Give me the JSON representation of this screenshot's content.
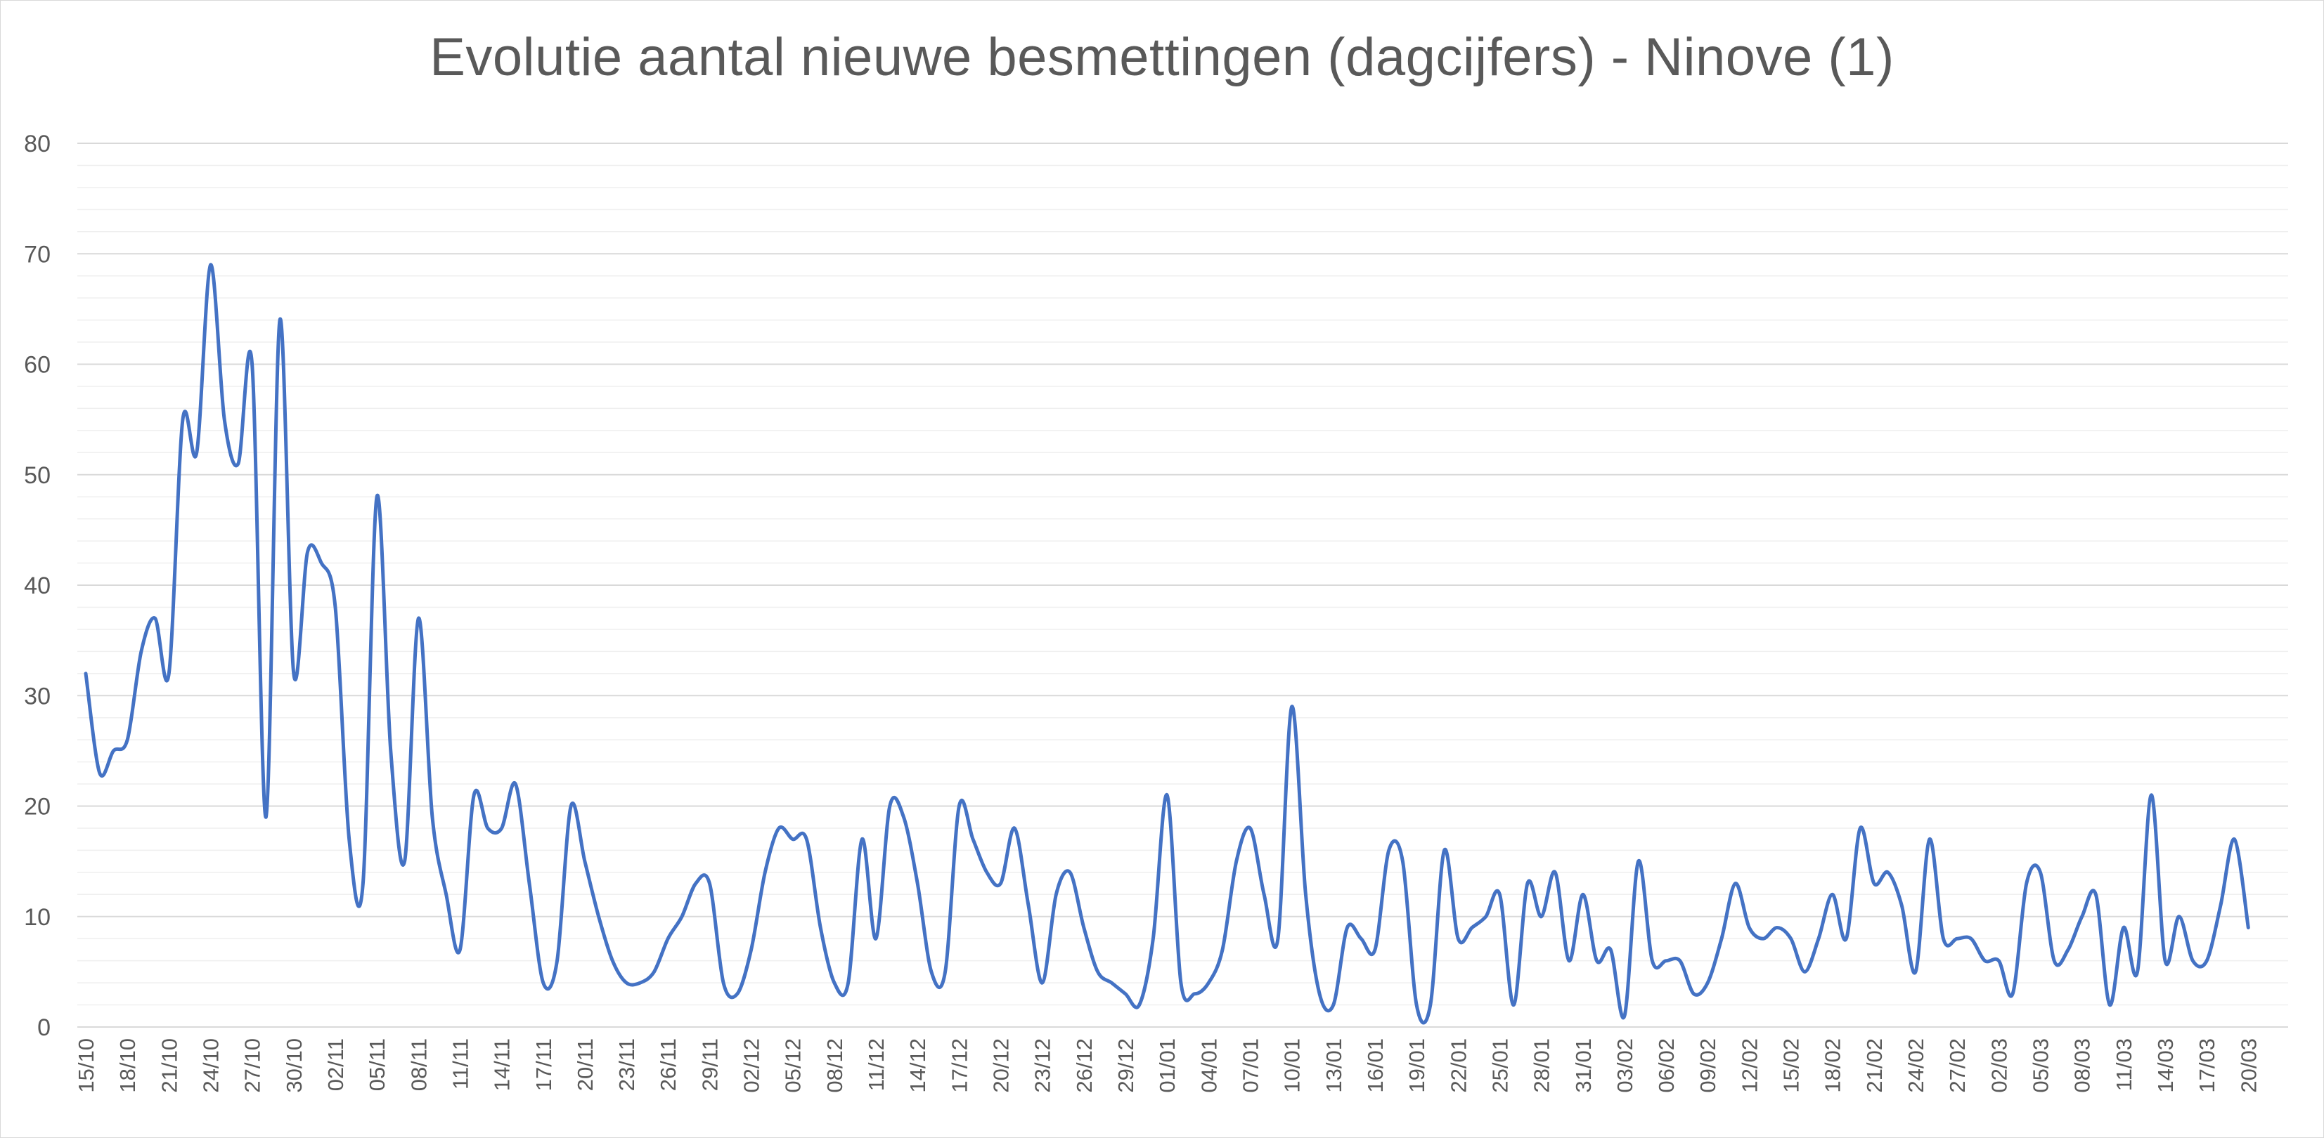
{
  "chart_data": {
    "type": "line",
    "title": "Evolutie aantal nieuwe besmettingen (dagcijfers) - Ninove (1)",
    "xlabel": "",
    "ylabel": "",
    "ylim": [
      0,
      80
    ],
    "y_ticks": [
      0,
      10,
      20,
      30,
      40,
      50,
      60,
      70,
      80
    ],
    "grid": true,
    "minor_grid": true,
    "legend": "none",
    "x_tick_labels": [
      "15/10",
      "18/10",
      "21/10",
      "24/10",
      "27/10",
      "30/10",
      "02/11",
      "05/11",
      "08/11",
      "11/11",
      "14/11",
      "17/11",
      "20/11",
      "23/11",
      "26/11",
      "29/11",
      "02/12",
      "05/12",
      "08/12",
      "11/12",
      "14/12",
      "17/12",
      "20/12",
      "23/12",
      "26/12",
      "29/12",
      "01/01",
      "04/01",
      "07/01",
      "10/01",
      "13/01",
      "16/01",
      "19/01",
      "22/01",
      "25/01",
      "28/01",
      "31/01",
      "03/02",
      "06/02",
      "09/02",
      "12/02",
      "15/02",
      "18/02",
      "21/02",
      "24/02",
      "27/02",
      "02/03",
      "05/03",
      "08/03",
      "11/03",
      "14/03",
      "17/03",
      "20/03"
    ],
    "tick_every": 3,
    "series": [
      {
        "color": "#4472c4",
        "values": [
          32,
          23,
          25,
          26,
          34,
          37,
          32,
          55,
          52,
          69,
          55,
          51,
          60,
          19,
          64,
          32,
          43,
          42,
          38,
          17,
          13,
          48,
          25,
          15,
          37,
          19,
          12,
          7,
          21,
          18,
          18,
          22,
          13,
          4,
          6,
          20,
          15,
          10,
          6,
          4,
          4,
          5,
          8,
          10,
          13,
          13,
          4,
          3,
          7,
          14,
          18,
          17,
          17,
          9,
          4,
          4,
          17,
          8,
          20,
          19,
          13,
          5,
          5,
          20,
          17,
          14,
          13,
          18,
          11,
          4,
          12,
          14,
          9,
          5,
          4,
          3,
          2,
          8,
          21,
          4,
          3,
          4,
          7,
          15,
          18,
          12,
          8,
          29,
          12,
          3,
          2,
          9,
          8,
          7,
          16,
          15,
          2,
          2,
          16,
          8,
          9,
          10,
          12,
          2,
          13,
          10,
          14,
          6,
          12,
          6,
          7,
          1,
          15,
          6,
          6,
          6,
          3,
          4,
          8,
          13,
          9,
          8,
          9,
          8,
          5,
          8,
          12,
          8,
          18,
          13,
          14,
          11,
          5,
          17,
          8,
          8,
          8,
          6,
          6,
          3,
          13,
          14,
          6,
          7,
          10,
          12,
          2,
          9,
          5,
          21,
          6,
          10,
          6,
          6,
          11,
          17,
          9
        ]
      }
    ]
  }
}
